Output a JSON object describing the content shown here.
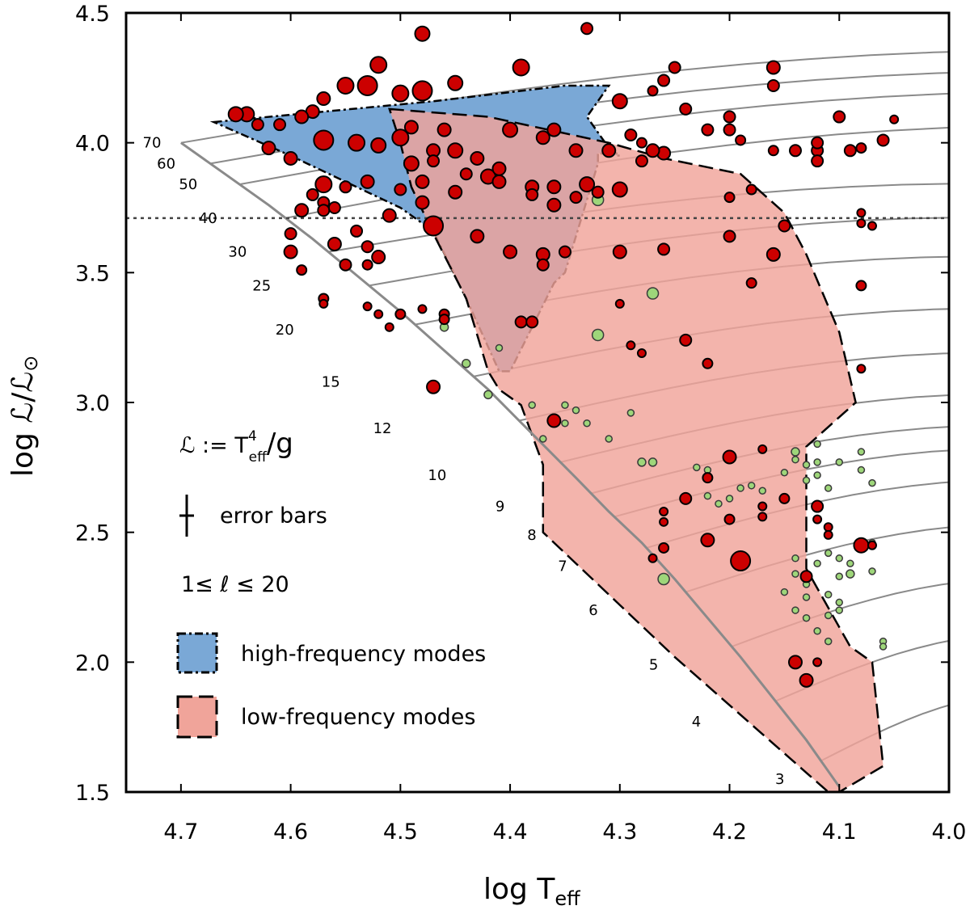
{
  "chart_data": {
    "type": "scatter",
    "xlabel": "log T",
    "xlabel_sub": "eff",
    "ylabel": "log ℒ/ℒ",
    "ylabel_sym": "⊙",
    "xlim": [
      4.75,
      4.0
    ],
    "ylim": [
      1.5,
      4.5
    ],
    "xticks": [
      "4.7",
      "4.6",
      "4.5",
      "4.4",
      "4.3",
      "4.2",
      "4.1",
      "4.0"
    ],
    "xtick_values": [
      4.7,
      4.6,
      4.5,
      4.4,
      4.3,
      4.2,
      4.1,
      4.0
    ],
    "yticks": [
      "1.5",
      "2.0",
      "2.5",
      "3.0",
      "3.5",
      "4.0",
      "4.5"
    ],
    "ytick_values": [
      1.5,
      2.0,
      2.5,
      3.0,
      3.5,
      4.0,
      4.5
    ],
    "dotted_line_y": 3.71,
    "annotations": {
      "definition_lhs": "ℒ := T",
      "definition_sup": "4",
      "definition_sub": "eff",
      "definition_rhs": "/g",
      "error_bars": "error bars",
      "ell_range": "1≤ ℓ ≤ 20"
    },
    "legend": [
      {
        "label": "high-frequency modes",
        "color": "#7aa8d6",
        "border": "dash-dot"
      },
      {
        "label": "low-frequency modes",
        "color": "#f0a49a",
        "border": "dashed"
      }
    ],
    "colors": {
      "red_point": "#cc0000",
      "green_point": "#9ed67a",
      "track": "#8a8a8a"
    },
    "zams": [
      [
        4.7,
        4.0
      ],
      [
        4.66,
        3.88
      ],
      [
        4.62,
        3.76
      ],
      [
        4.58,
        3.63
      ],
      [
        4.54,
        3.49
      ],
      [
        4.5,
        3.35
      ],
      [
        4.46,
        3.2
      ],
      [
        4.42,
        3.05
      ],
      [
        4.38,
        2.88
      ],
      [
        4.34,
        2.71
      ],
      [
        4.31,
        2.58
      ],
      [
        4.28,
        2.46
      ],
      [
        4.25,
        2.32
      ],
      [
        4.22,
        2.17
      ],
      [
        4.19,
        2.02
      ],
      [
        4.16,
        1.86
      ],
      [
        4.13,
        1.7
      ],
      [
        4.1,
        1.52
      ]
    ],
    "mass_labels": [
      {
        "text": "70",
        "x": 4.718,
        "y": 4.0
      },
      {
        "text": "60",
        "x": 4.705,
        "y": 3.92
      },
      {
        "text": "50",
        "x": 4.685,
        "y": 3.84
      },
      {
        "text": "40",
        "x": 4.667,
        "y": 3.71
      },
      {
        "text": "30",
        "x": 4.64,
        "y": 3.58
      },
      {
        "text": "25",
        "x": 4.618,
        "y": 3.45
      },
      {
        "text": "20",
        "x": 4.597,
        "y": 3.28
      },
      {
        "text": "15",
        "x": 4.555,
        "y": 3.08
      },
      {
        "text": "12",
        "x": 4.508,
        "y": 2.9
      },
      {
        "text": "10",
        "x": 4.458,
        "y": 2.72
      },
      {
        "text": "9",
        "x": 4.405,
        "y": 2.6
      },
      {
        "text": "8",
        "x": 4.376,
        "y": 2.49
      },
      {
        "text": "7",
        "x": 4.348,
        "y": 2.37
      },
      {
        "text": "6",
        "x": 4.32,
        "y": 2.2
      },
      {
        "text": "5",
        "x": 4.265,
        "y": 1.99
      },
      {
        "text": "4",
        "x": 4.226,
        "y": 1.77
      },
      {
        "text": "3",
        "x": 4.15,
        "y": 1.55
      }
    ],
    "high_freq_region": [
      [
        4.67,
        4.08
      ],
      [
        4.47,
        4.16
      ],
      [
        4.35,
        4.22
      ],
      [
        4.31,
        4.22
      ],
      [
        4.33,
        4.1
      ],
      [
        4.31,
        3.98
      ],
      [
        4.3,
        3.95
      ],
      [
        4.32,
        3.96
      ],
      [
        4.32,
        3.92
      ],
      [
        4.35,
        3.5
      ],
      [
        4.36,
        3.46
      ],
      [
        4.4,
        3.12
      ],
      [
        4.41,
        3.12
      ],
      [
        4.44,
        3.4
      ],
      [
        4.47,
        3.66
      ],
      [
        4.5,
        3.75
      ],
      [
        4.55,
        3.85
      ],
      [
        4.6,
        3.95
      ]
    ],
    "low_freq_region": [
      [
        4.51,
        4.13
      ],
      [
        4.42,
        4.1
      ],
      [
        4.31,
        4.0
      ],
      [
        4.26,
        3.94
      ],
      [
        4.19,
        3.88
      ],
      [
        4.15,
        3.73
      ],
      [
        4.13,
        3.57
      ],
      [
        4.1,
        3.27
      ],
      [
        4.085,
        3.0
      ],
      [
        4.13,
        2.83
      ],
      [
        4.13,
        2.36
      ],
      [
        4.09,
        2.06
      ],
      [
        4.07,
        2.0
      ],
      [
        4.06,
        1.6
      ],
      [
        4.1,
        1.5
      ],
      [
        4.11,
        1.5
      ],
      [
        4.25,
        2.02
      ],
      [
        4.37,
        2.5
      ],
      [
        4.37,
        2.76
      ],
      [
        4.39,
        2.99
      ],
      [
        4.41,
        3.05
      ],
      [
        4.42,
        3.12
      ],
      [
        4.44,
        3.4
      ],
      [
        4.47,
        3.65
      ],
      [
        4.49,
        3.83
      ],
      [
        4.5,
        4.0
      ]
    ],
    "red_points": [
      [
        4.48,
        4.42,
        9
      ],
      [
        4.33,
        4.44,
        7
      ],
      [
        4.52,
        4.3,
        10
      ],
      [
        4.39,
        4.29,
        10
      ],
      [
        4.45,
        4.23,
        9
      ],
      [
        4.48,
        4.2,
        12
      ],
      [
        4.5,
        4.19,
        10
      ],
      [
        4.53,
        4.22,
        12
      ],
      [
        4.55,
        4.22,
        10
      ],
      [
        4.57,
        4.17,
        8
      ],
      [
        4.58,
        4.12,
        8
      ],
      [
        4.59,
        4.1,
        8
      ],
      [
        4.61,
        4.07,
        7
      ],
      [
        4.63,
        4.07,
        7
      ],
      [
        4.64,
        4.11,
        9
      ],
      [
        4.65,
        4.11,
        9
      ],
      [
        4.62,
        3.98,
        8
      ],
      [
        4.6,
        3.94,
        8
      ],
      [
        4.57,
        4.01,
        12
      ],
      [
        4.54,
        4.0,
        10
      ],
      [
        4.52,
        3.99,
        9
      ],
      [
        4.5,
        4.02,
        10
      ],
      [
        4.49,
        4.06,
        8
      ],
      [
        4.46,
        4.05,
        8
      ],
      [
        4.47,
        3.97,
        8
      ],
      [
        4.43,
        3.94,
        8
      ],
      [
        4.4,
        4.05,
        9
      ],
      [
        4.37,
        4.02,
        8
      ],
      [
        4.36,
        4.05,
        8
      ],
      [
        4.34,
        3.97,
        8
      ],
      [
        4.31,
        3.97,
        8
      ],
      [
        4.33,
        3.84,
        9
      ],
      [
        4.32,
        3.81,
        7
      ],
      [
        4.34,
        3.79,
        7
      ],
      [
        4.36,
        3.76,
        8
      ],
      [
        4.3,
        3.82,
        9
      ],
      [
        4.28,
        3.93,
        7
      ],
      [
        4.26,
        3.96,
        8
      ],
      [
        4.24,
        4.13,
        7
      ],
      [
        4.22,
        4.05,
        7
      ],
      [
        4.2,
        4.1,
        7
      ],
      [
        4.2,
        4.05,
        7
      ],
      [
        4.16,
        4.29,
        8
      ],
      [
        4.16,
        4.22,
        7
      ],
      [
        4.14,
        3.97,
        7
      ],
      [
        4.12,
        3.97,
        7
      ],
      [
        4.12,
        4.0,
        7
      ],
      [
        4.12,
        3.93,
        7
      ],
      [
        4.09,
        3.97,
        7
      ],
      [
        4.1,
        4.1,
        7
      ],
      [
        4.08,
        3.98,
        6
      ],
      [
        4.06,
        4.01,
        7
      ],
      [
        4.05,
        4.09,
        5
      ],
      [
        4.19,
        4.01,
        6
      ],
      [
        4.3,
        4.16,
        9
      ],
      [
        4.26,
        4.24,
        7
      ],
      [
        4.27,
        4.2,
        6
      ],
      [
        4.25,
        4.29,
        7
      ],
      [
        4.29,
        4.03,
        7
      ],
      [
        4.28,
        4.0,
        6
      ],
      [
        4.27,
        3.97,
        8
      ],
      [
        4.18,
        3.82,
        6
      ],
      [
        4.2,
        3.79,
        6
      ],
      [
        4.16,
        3.97,
        6
      ],
      [
        4.15,
        3.68,
        7
      ],
      [
        4.16,
        3.57,
        8
      ],
      [
        4.2,
        3.64,
        7
      ],
      [
        4.26,
        3.59,
        7
      ],
      [
        4.3,
        3.58,
        8
      ],
      [
        4.47,
        3.68,
        12
      ],
      [
        4.48,
        3.77,
        8
      ],
      [
        4.51,
        3.72,
        8
      ],
      [
        4.5,
        3.82,
        7
      ],
      [
        4.48,
        3.85,
        8
      ],
      [
        4.45,
        3.81,
        8
      ],
      [
        4.44,
        3.88,
        7
      ],
      [
        4.42,
        3.87,
        9
      ],
      [
        4.41,
        3.85,
        8
      ],
      [
        4.38,
        3.83,
        8
      ],
      [
        4.36,
        3.83,
        8
      ],
      [
        4.43,
        3.64,
        8
      ],
      [
        4.4,
        3.58,
        8
      ],
      [
        4.37,
        3.57,
        8
      ],
      [
        4.37,
        3.53,
        7
      ],
      [
        4.39,
        3.31,
        7
      ],
      [
        4.38,
        3.31,
        7
      ],
      [
        4.35,
        3.58,
        7
      ],
      [
        4.38,
        3.8,
        7
      ],
      [
        4.41,
        3.9,
        8
      ],
      [
        4.45,
        3.97,
        9
      ],
      [
        4.47,
        3.93,
        7
      ],
      [
        4.49,
        3.92,
        9
      ],
      [
        4.53,
        3.85,
        8
      ],
      [
        4.55,
        3.83,
        7
      ],
      [
        4.57,
        3.77,
        7
      ],
      [
        4.57,
        3.84,
        10
      ],
      [
        4.58,
        3.8,
        7
      ],
      [
        4.59,
        3.74,
        8
      ],
      [
        4.57,
        3.74,
        7
      ],
      [
        4.56,
        3.75,
        7
      ],
      [
        4.6,
        3.65,
        7
      ],
      [
        4.6,
        3.58,
        8
      ],
      [
        4.59,
        3.51,
        6
      ],
      [
        4.56,
        3.61,
        8
      ],
      [
        4.54,
        3.66,
        7
      ],
      [
        4.53,
        3.6,
        7
      ],
      [
        4.52,
        3.56,
        8
      ],
      [
        4.53,
        3.53,
        6
      ],
      [
        4.55,
        3.53,
        7
      ],
      [
        4.57,
        3.4,
        6
      ],
      [
        4.57,
        3.38,
        5
      ],
      [
        4.53,
        3.37,
        5
      ],
      [
        4.52,
        3.34,
        5
      ],
      [
        4.51,
        3.29,
        5
      ],
      [
        4.5,
        3.34,
        6
      ],
      [
        4.48,
        3.36,
        5
      ],
      [
        4.46,
        3.34,
        6
      ],
      [
        4.46,
        3.32,
        6
      ],
      [
        4.47,
        3.06,
        8
      ],
      [
        4.36,
        2.93,
        8
      ],
      [
        4.3,
        3.38,
        5
      ],
      [
        4.29,
        3.22,
        5
      ],
      [
        4.28,
        3.19,
        5
      ],
      [
        4.24,
        3.24,
        7
      ],
      [
        4.22,
        3.15,
        6
      ],
      [
        4.18,
        3.46,
        6
      ],
      [
        4.08,
        3.45,
        6
      ],
      [
        4.08,
        3.73,
        5
      ],
      [
        4.08,
        3.69,
        5
      ],
      [
        4.07,
        3.68,
        5
      ],
      [
        4.08,
        3.13,
        5
      ],
      [
        4.2,
        2.79,
        8
      ],
      [
        4.24,
        2.63,
        7
      ],
      [
        4.22,
        2.71,
        6
      ],
      [
        4.2,
        2.55,
        6
      ],
      [
        4.22,
        2.47,
        8
      ],
      [
        4.19,
        2.39,
        12
      ],
      [
        4.26,
        2.44,
        6
      ],
      [
        4.26,
        2.54,
        5
      ],
      [
        4.26,
        2.58,
        5
      ],
      [
        4.27,
        2.4,
        5
      ],
      [
        4.17,
        2.6,
        5
      ],
      [
        4.17,
        2.82,
        5
      ],
      [
        4.17,
        2.56,
        5
      ],
      [
        4.15,
        2.63,
        6
      ],
      [
        4.12,
        2.6,
        7
      ],
      [
        4.12,
        2.55,
        5
      ],
      [
        4.11,
        2.52,
        5
      ],
      [
        4.11,
        2.49,
        5
      ],
      [
        4.13,
        2.33,
        7
      ],
      [
        4.08,
        2.45,
        9
      ],
      [
        4.07,
        2.45,
        5
      ],
      [
        4.14,
        2.0,
        8
      ],
      [
        4.13,
        1.93,
        8
      ],
      [
        4.12,
        2.0,
        5
      ]
    ],
    "green_points": [
      [
        4.32,
        3.78,
        7
      ],
      [
        4.27,
        3.42,
        7
      ],
      [
        4.32,
        3.26,
        7
      ],
      [
        4.26,
        2.32,
        7
      ],
      [
        4.46,
        3.29,
        5
      ],
      [
        4.44,
        3.15,
        5
      ],
      [
        4.42,
        3.03,
        5
      ],
      [
        4.41,
        3.21,
        4
      ],
      [
        4.38,
        2.99,
        4
      ],
      [
        4.37,
        2.86,
        4
      ],
      [
        4.36,
        2.94,
        5
      ],
      [
        4.35,
        2.99,
        4
      ],
      [
        4.35,
        2.92,
        4
      ],
      [
        4.34,
        2.97,
        4
      ],
      [
        4.33,
        2.92,
        4
      ],
      [
        4.31,
        2.86,
        4
      ],
      [
        4.29,
        2.96,
        4
      ],
      [
        4.28,
        2.77,
        5
      ],
      [
        4.27,
        2.77,
        5
      ],
      [
        4.24,
        2.64,
        4
      ],
      [
        4.23,
        2.75,
        4
      ],
      [
        4.22,
        2.74,
        4
      ],
      [
        4.22,
        2.64,
        4
      ],
      [
        4.21,
        2.61,
        4
      ],
      [
        4.2,
        2.63,
        4
      ],
      [
        4.19,
        2.67,
        4
      ],
      [
        4.18,
        2.68,
        4
      ],
      [
        4.17,
        2.66,
        4
      ],
      [
        4.15,
        2.73,
        4
      ],
      [
        4.13,
        2.7,
        4
      ],
      [
        4.12,
        2.72,
        4
      ],
      [
        4.11,
        2.67,
        4
      ],
      [
        4.13,
        2.76,
        4
      ],
      [
        4.14,
        2.78,
        4
      ],
      [
        4.14,
        2.81,
        5
      ],
      [
        4.12,
        2.84,
        4
      ],
      [
        4.12,
        2.77,
        4
      ],
      [
        4.1,
        2.77,
        4
      ],
      [
        4.08,
        2.74,
        4
      ],
      [
        4.08,
        2.81,
        4
      ],
      [
        4.07,
        2.69,
        4
      ],
      [
        4.14,
        2.4,
        4
      ],
      [
        4.12,
        2.38,
        4
      ],
      [
        4.11,
        2.42,
        4
      ],
      [
        4.1,
        2.4,
        4
      ],
      [
        4.09,
        2.38,
        4
      ],
      [
        4.09,
        2.34,
        5
      ],
      [
        4.1,
        2.33,
        4
      ],
      [
        4.13,
        2.3,
        4
      ],
      [
        4.14,
        2.34,
        4
      ],
      [
        4.15,
        2.27,
        4
      ],
      [
        4.14,
        2.2,
        4
      ],
      [
        4.13,
        2.17,
        4
      ],
      [
        4.12,
        2.12,
        4
      ],
      [
        4.11,
        2.08,
        4
      ],
      [
        4.1,
        2.2,
        4
      ],
      [
        4.1,
        2.23,
        4
      ],
      [
        4.11,
        2.26,
        4
      ],
      [
        4.13,
        2.25,
        4
      ],
      [
        4.07,
        2.46,
        4
      ],
      [
        4.07,
        2.35,
        4
      ],
      [
        4.06,
        2.08,
        4
      ],
      [
        4.06,
        2.06,
        4
      ],
      [
        4.11,
        2.18,
        4
      ]
    ]
  }
}
